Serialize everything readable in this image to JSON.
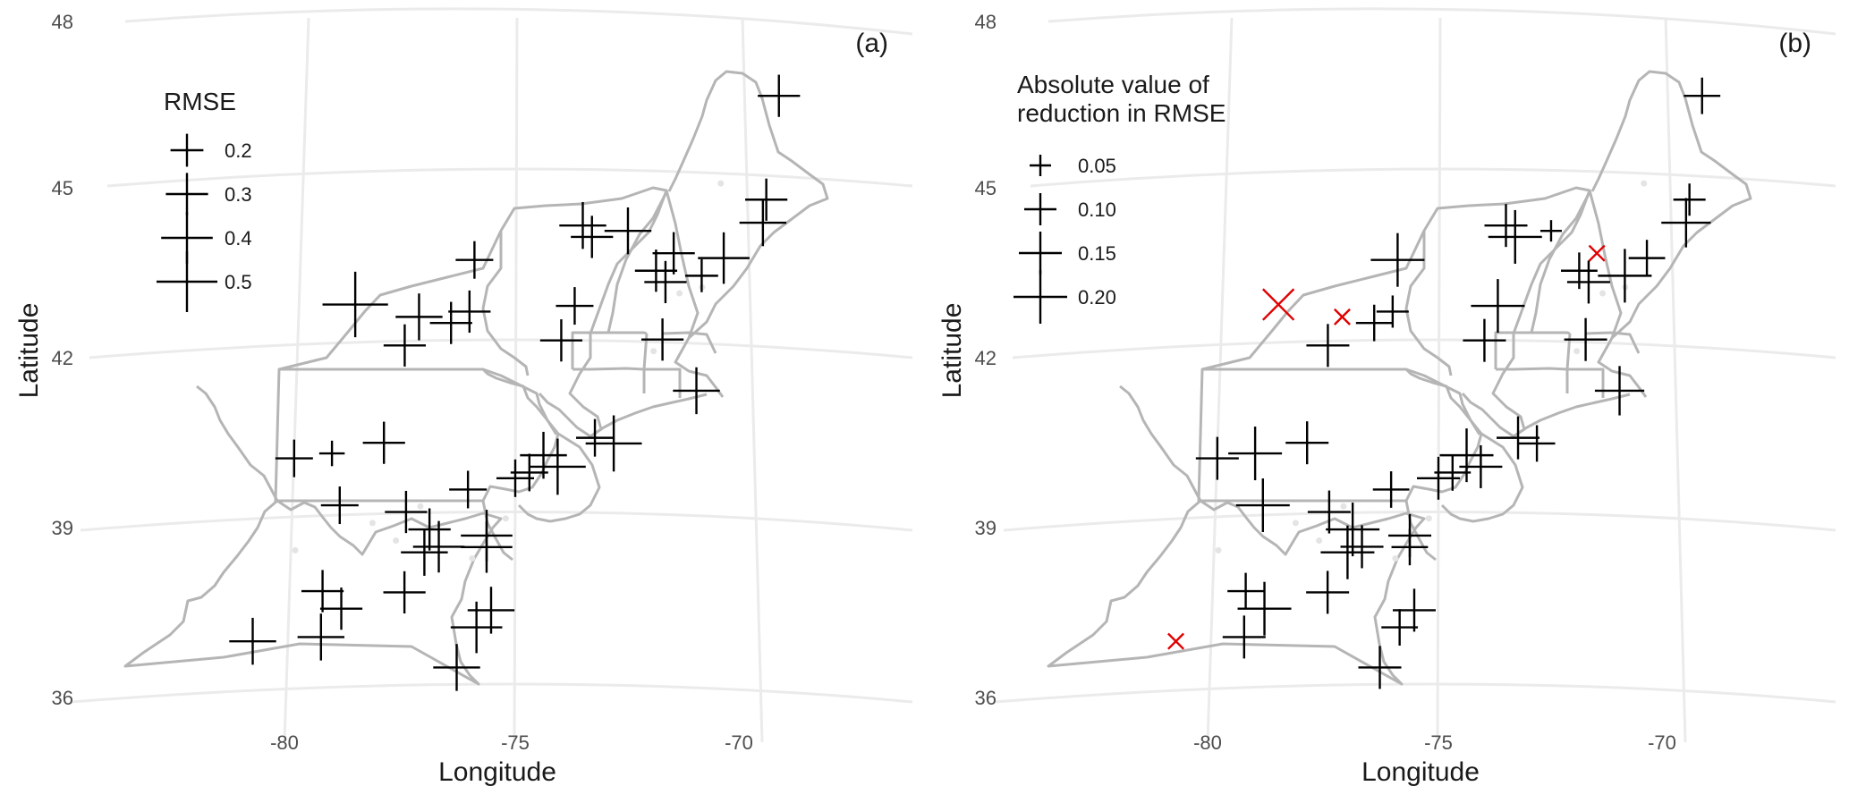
{
  "colors": {
    "marker": "#000000",
    "negative": "#e00000",
    "border": "#b5b5b5",
    "graticule": "#ebebeb"
  },
  "panels": [
    {
      "id": "a",
      "tag": "(a)",
      "xlabel": "Longitude",
      "ylabel": "Latitude",
      "x_ticks": [
        "-80",
        "-75",
        "-70"
      ],
      "y_ticks": [
        "48",
        "45",
        "42",
        "39",
        "36"
      ],
      "legend": {
        "title_lines": [
          "RMSE"
        ],
        "entries": [
          {
            "label": "0.2",
            "value": 0.2
          },
          {
            "label": "0.3",
            "value": 0.3
          },
          {
            "label": "0.4",
            "value": 0.4
          },
          {
            "label": "0.5",
            "value": 0.5
          }
        ]
      }
    },
    {
      "id": "b",
      "tag": "(b)",
      "xlabel": "Longitude",
      "ylabel": "Latitude",
      "x_ticks": [
        "-80",
        "-75",
        "-70"
      ],
      "y_ticks": [
        "48",
        "45",
        "42",
        "39",
        "36"
      ],
      "legend": {
        "title_lines": [
          "Absolute value of",
          "reduction in RMSE"
        ],
        "entries": [
          {
            "label": "0.05",
            "value": 0.05
          },
          {
            "label": "0.10",
            "value": 0.1
          },
          {
            "label": "0.15",
            "value": 0.15
          },
          {
            "label": "0.20",
            "value": 0.2
          }
        ]
      }
    }
  ],
  "chart_data": {
    "type": "scatter",
    "projection": "conic (northeastern United States)",
    "xlim": [
      -84,
      -66
    ],
    "ylim": [
      36,
      48
    ],
    "grid": true,
    "stations": [
      {
        "lon": -69.0,
        "lat": 46.5,
        "rmse": 0.3,
        "delta": 0.12,
        "sign": "+"
      },
      {
        "lon": -69.4,
        "lat": 44.7,
        "rmse": 0.3,
        "delta": 0.1,
        "sign": "+"
      },
      {
        "lon": -69.5,
        "lat": 44.3,
        "rmse": 0.35,
        "delta": 0.18,
        "sign": "+"
      },
      {
        "lon": -70.4,
        "lat": 43.7,
        "rmse": 0.4,
        "delta": 0.12,
        "sign": "+"
      },
      {
        "lon": -70.9,
        "lat": 43.4,
        "rmse": 0.2,
        "delta": 0.2,
        "sign": "+"
      },
      {
        "lon": -71.5,
        "lat": 43.8,
        "rmse": 0.3,
        "delta": 0.05,
        "sign": "-"
      },
      {
        "lon": -71.7,
        "lat": 43.3,
        "rmse": 0.3,
        "delta": 0.15,
        "sign": "+"
      },
      {
        "lon": -71.9,
        "lat": 43.5,
        "rmse": 0.3,
        "delta": 0.12,
        "sign": "+"
      },
      {
        "lon": -72.5,
        "lat": 44.2,
        "rmse": 0.35,
        "delta": 0.05,
        "sign": "+"
      },
      {
        "lon": -73.3,
        "lat": 44.1,
        "rmse": 0.3,
        "delta": 0.2,
        "sign": "+"
      },
      {
        "lon": -73.5,
        "lat": 44.3,
        "rmse": 0.35,
        "delta": 0.15,
        "sign": "+"
      },
      {
        "lon": -73.7,
        "lat": 42.9,
        "rmse": 0.25,
        "delta": 0.2,
        "sign": "+"
      },
      {
        "lon": -74.0,
        "lat": 42.3,
        "rmse": 0.3,
        "delta": 0.15,
        "sign": "+"
      },
      {
        "lon": -71.8,
        "lat": 42.3,
        "rmse": 0.3,
        "delta": 0.15,
        "sign": "+"
      },
      {
        "lon": -71.1,
        "lat": 41.4,
        "rmse": 0.35,
        "delta": 0.18,
        "sign": "+"
      },
      {
        "lon": -75.9,
        "lat": 43.7,
        "rmse": 0.25,
        "delta": 0.2,
        "sign": "+"
      },
      {
        "lon": -76.0,
        "lat": 42.8,
        "rmse": 0.3,
        "delta": 0.1,
        "sign": "+"
      },
      {
        "lon": -76.4,
        "lat": 42.6,
        "rmse": 0.3,
        "delta": 0.12,
        "sign": "+"
      },
      {
        "lon": -77.1,
        "lat": 42.7,
        "rmse": 0.35,
        "delta": 0.05,
        "sign": "-"
      },
      {
        "lon": -77.4,
        "lat": 42.2,
        "rmse": 0.3,
        "delta": 0.15,
        "sign": "+"
      },
      {
        "lon": -78.5,
        "lat": 42.9,
        "rmse": 0.55,
        "delta": 0.15,
        "sign": "-"
      },
      {
        "lon": -79.7,
        "lat": 40.2,
        "rmse": 0.25,
        "delta": 0.15,
        "sign": "+"
      },
      {
        "lon": -78.9,
        "lat": 40.3,
        "rmse": 0.12,
        "delta": 0.2,
        "sign": "+"
      },
      {
        "lon": -77.8,
        "lat": 40.5,
        "rmse": 0.3,
        "delta": 0.15,
        "sign": "+"
      },
      {
        "lon": -76.0,
        "lat": 39.7,
        "rmse": 0.25,
        "delta": 0.12,
        "sign": "+"
      },
      {
        "lon": -75.0,
        "lat": 39.9,
        "rmse": 0.25,
        "delta": 0.15,
        "sign": "+"
      },
      {
        "lon": -74.7,
        "lat": 40.0,
        "rmse": 0.25,
        "delta": 0.12,
        "sign": "+"
      },
      {
        "lon": -74.4,
        "lat": 40.3,
        "rmse": 0.35,
        "delta": 0.2,
        "sign": "+"
      },
      {
        "lon": -74.1,
        "lat": 40.1,
        "rmse": 0.45,
        "delta": 0.15,
        "sign": "+"
      },
      {
        "lon": -73.3,
        "lat": 40.6,
        "rmse": 0.25,
        "delta": 0.15,
        "sign": "+"
      },
      {
        "lon": -72.9,
        "lat": 40.5,
        "rmse": 0.45,
        "delta": 0.12,
        "sign": "+"
      },
      {
        "lon": -78.7,
        "lat": 39.4,
        "rmse": 0.25,
        "delta": 0.2,
        "sign": "+"
      },
      {
        "lon": -77.3,
        "lat": 39.3,
        "rmse": 0.3,
        "delta": 0.15,
        "sign": "+"
      },
      {
        "lon": -76.8,
        "lat": 39.0,
        "rmse": 0.3,
        "delta": 0.2,
        "sign": "+"
      },
      {
        "lon": -76.6,
        "lat": 38.7,
        "rmse": 0.4,
        "delta": 0.15,
        "sign": "+"
      },
      {
        "lon": -76.9,
        "lat": 38.6,
        "rmse": 0.35,
        "delta": 0.2,
        "sign": "+"
      },
      {
        "lon": -75.6,
        "lat": 38.9,
        "rmse": 0.4,
        "delta": 0.15,
        "sign": "+"
      },
      {
        "lon": -75.6,
        "lat": 38.7,
        "rmse": 0.4,
        "delta": 0.12,
        "sign": "+"
      },
      {
        "lon": -79.0,
        "lat": 37.9,
        "rmse": 0.3,
        "delta": 0.12,
        "sign": "+"
      },
      {
        "lon": -78.6,
        "lat": 37.6,
        "rmse": 0.3,
        "delta": 0.2,
        "sign": "+"
      },
      {
        "lon": -77.3,
        "lat": 37.9,
        "rmse": 0.3,
        "delta": 0.15,
        "sign": "+"
      },
      {
        "lon": -79.0,
        "lat": 37.1,
        "rmse": 0.35,
        "delta": 0.15,
        "sign": "+"
      },
      {
        "lon": -80.4,
        "lat": 37.0,
        "rmse": 0.35,
        "delta": 0.05,
        "sign": "-"
      },
      {
        "lon": -75.5,
        "lat": 37.6,
        "rmse": 0.35,
        "delta": 0.15,
        "sign": "+"
      },
      {
        "lon": -75.8,
        "lat": 37.3,
        "rmse": 0.4,
        "delta": 0.12,
        "sign": "+"
      },
      {
        "lon": -76.2,
        "lat": 36.6,
        "rmse": 0.35,
        "delta": 0.15,
        "sign": "+"
      }
    ]
  }
}
